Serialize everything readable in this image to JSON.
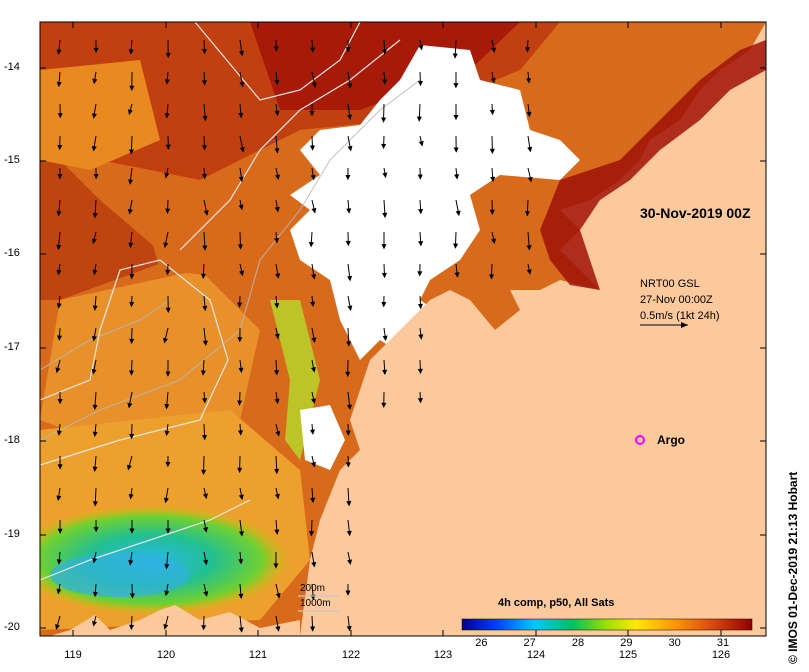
{
  "map": {
    "overlay_title": "30-Nov-2019 00Z",
    "wind_source": "NRT00 GSL",
    "wind_time": "27-Nov 00:00Z",
    "wind_scale": "0.5m/s (1kt 24h)",
    "argo_label": "Argo",
    "credit": "© IMOS 01-Dec-2019 21:13 Hobart",
    "depth_contours": [
      "200m",
      "1000m"
    ],
    "lat_ticks": [
      "-14",
      "-15",
      "-16",
      "-17",
      "-18",
      "-19",
      "-20"
    ],
    "lon_ticks": [
      "119",
      "120",
      "121",
      "122",
      "123",
      "124",
      "125",
      "126"
    ],
    "colorbar": {
      "title": "4h comp, p50, All Sats",
      "ticks": [
        "26",
        "27",
        "28",
        "29",
        "30",
        "31"
      ],
      "range": [
        25.6,
        31.6
      ]
    },
    "colors": {
      "land": "#fbc99c",
      "cloud": "#ffffff",
      "sst_warm": "#d0531a",
      "sst_hot": "#b01a0a",
      "argo": "#ff00ff"
    }
  }
}
